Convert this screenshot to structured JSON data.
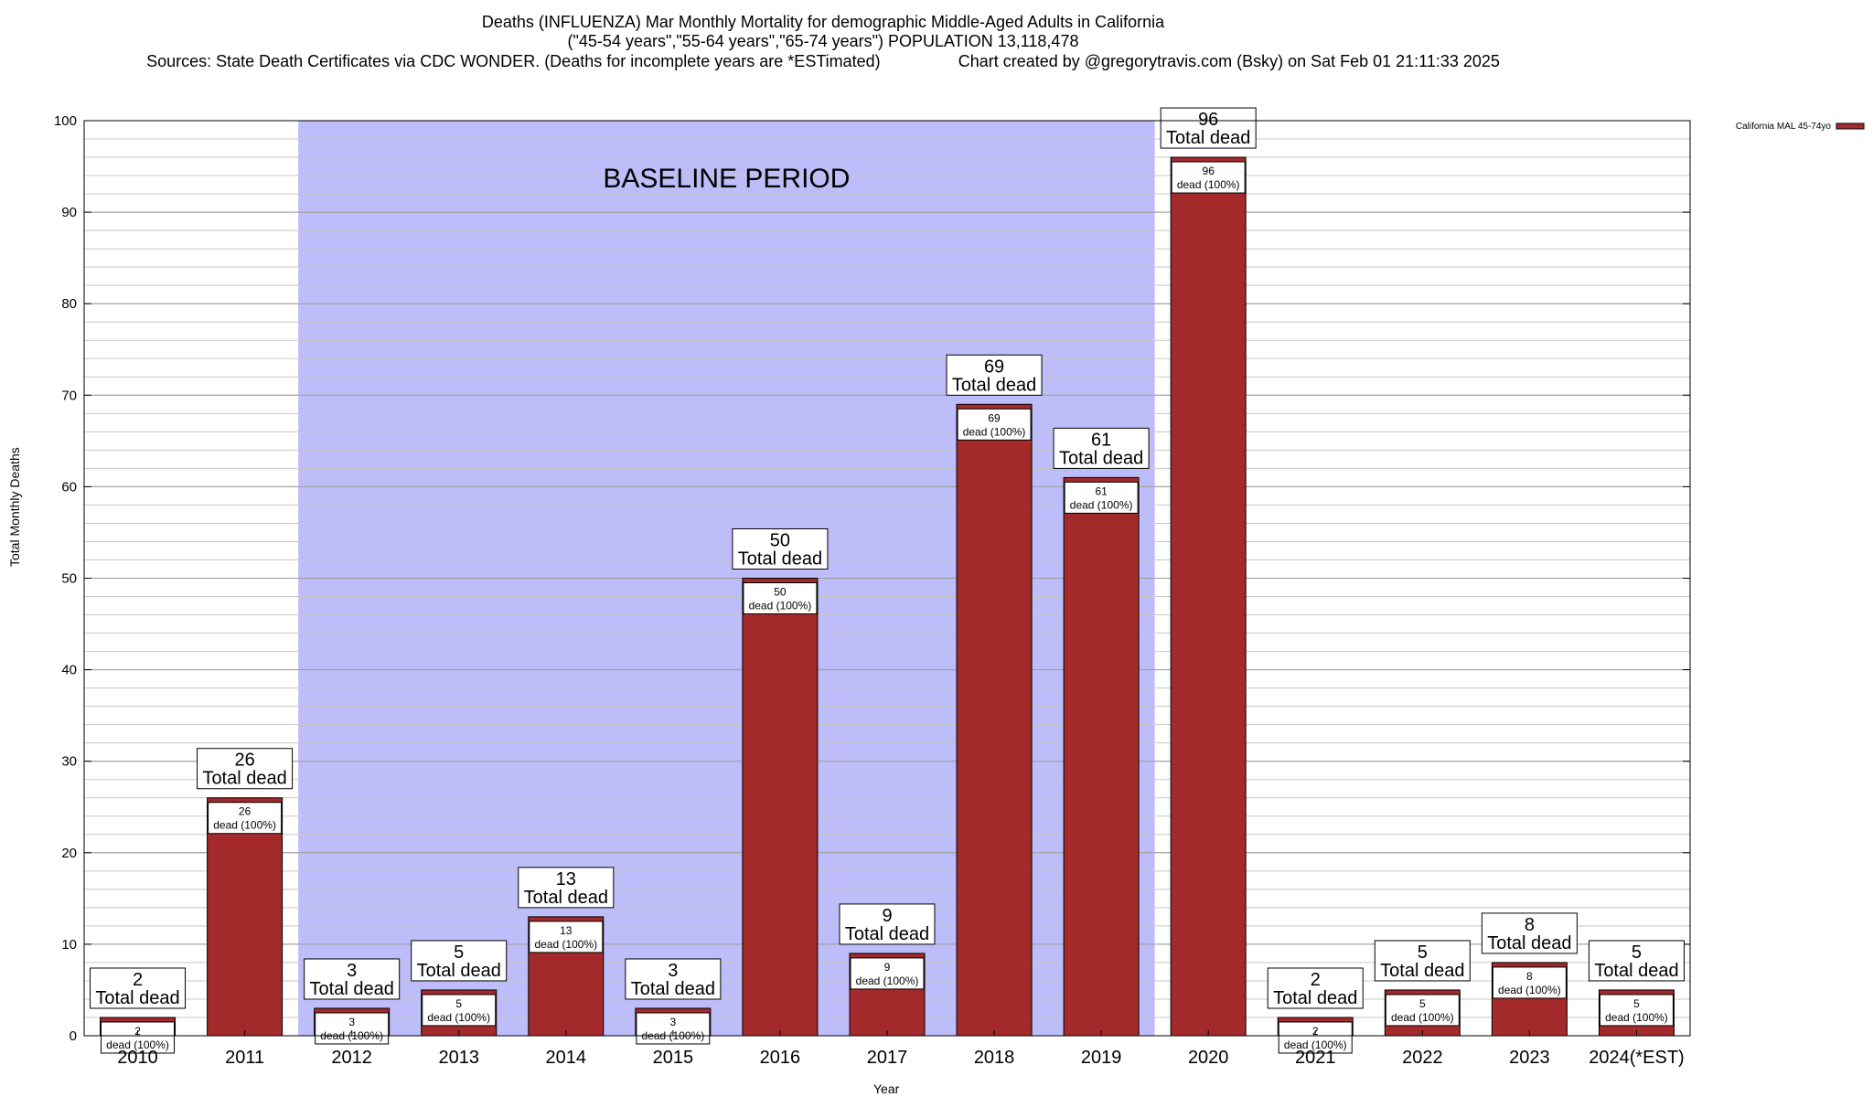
{
  "header": {
    "title_line1": "Deaths (INFLUENZA) Mar Monthly Mortality for demographic Middle-Aged Adults in California",
    "title_line2": "(\"45-54 years\",\"55-64 years\",\"65-74 years\") POPULATION 13,118,478",
    "sources": "Sources: State Death Certificates via CDC WONDER. (Deaths for incomplete years are *ESTimated)",
    "credit": "Chart created by @gregorytravis.com (Bsky) on Sat Feb 01 21:11:33 2025"
  },
  "chart_data": {
    "type": "bar",
    "xlabel": "Year",
    "ylabel": "Total Monthly Deaths",
    "ylim": [
      0,
      100
    ],
    "yticks": [
      0,
      10,
      20,
      30,
      40,
      50,
      60,
      70,
      80,
      90,
      100
    ],
    "minor_grid_step": 2,
    "grid": true,
    "categories": [
      "2010",
      "2011",
      "2012",
      "2013",
      "2014",
      "2015",
      "2016",
      "2017",
      "2018",
      "2019",
      "2020",
      "2021",
      "2022",
      "2023",
      "2024(*EST)"
    ],
    "series": [
      {
        "name": "California MAL 45-74yo",
        "values": [
          2,
          26,
          3,
          5,
          13,
          3,
          50,
          9,
          69,
          61,
          96,
          2,
          5,
          8,
          5
        ],
        "color": "#a3292b"
      }
    ],
    "total_label_suffix": "Total dead",
    "inner_label_suffix": "dead (100%)",
    "annotation": {
      "text": "BASELINE PERIOD",
      "from_category": "2012",
      "to_category": "2019",
      "color": "#bdbdfa"
    },
    "legend_position": "top-right"
  }
}
